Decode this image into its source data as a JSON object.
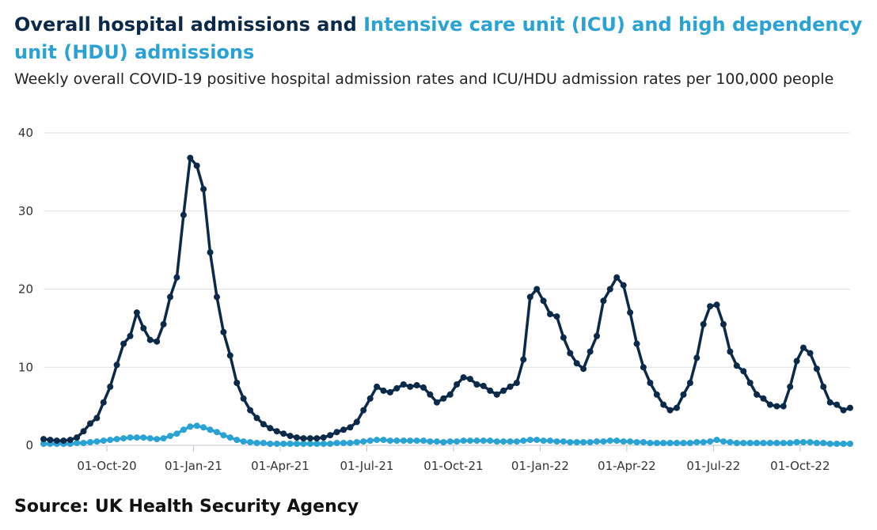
{
  "title": {
    "part1": "Overall hospital admissions",
    "connector": " and ",
    "part2": "Intensive care unit (ICU) and high dependency unit (HDU) admissions"
  },
  "subtitle": "Weekly overall COVID-19 positive hospital admission rates and ICU/HDU admission rates per 100,000 people",
  "source": "Source: UK Health Security Agency",
  "chart_data": {
    "type": "line",
    "title": "Overall hospital admissions and Intensive care unit (ICU) and high dependency unit (HDU) admissions",
    "xlabel": "",
    "ylabel": "",
    "ylim": [
      0,
      40
    ],
    "yticks": [
      0,
      10,
      20,
      30,
      40
    ],
    "grid": true,
    "xticks": [
      "01-Oct-20",
      "01-Jan-21",
      "01-Apr-21",
      "01-Jul-21",
      "01-Oct-21",
      "01-Jan-22",
      "01-Apr-22",
      "01-Jul-22",
      "01-Oct-22"
    ],
    "series": [
      {
        "name": "Overall hospital admissions",
        "color": "#0b2a4a",
        "values": [
          0.8,
          0.7,
          0.6,
          0.6,
          0.7,
          1.0,
          1.8,
          2.8,
          3.5,
          5.5,
          7.5,
          10.3,
          13.0,
          14.0,
          17.0,
          15.0,
          13.5,
          13.3,
          15.5,
          19.0,
          21.5,
          29.5,
          36.8,
          35.8,
          32.8,
          24.7,
          19.0,
          14.5,
          11.5,
          8.0,
          6.0,
          4.5,
          3.5,
          2.7,
          2.2,
          1.8,
          1.5,
          1.2,
          1.0,
          0.9,
          0.9,
          0.9,
          1.0,
          1.3,
          1.7,
          2.0,
          2.3,
          3.0,
          4.5,
          6.0,
          7.5,
          7.0,
          6.8,
          7.3,
          7.8,
          7.5,
          7.7,
          7.4,
          6.5,
          5.5,
          6.0,
          6.5,
          7.8,
          8.7,
          8.5,
          7.8,
          7.6,
          7.0,
          6.5,
          7.0,
          7.5,
          8.0,
          11.0,
          19.0,
          20.0,
          18.5,
          16.8,
          16.5,
          13.8,
          11.8,
          10.5,
          9.8,
          12.0,
          14.0,
          18.5,
          20.0,
          21.5,
          20.5,
          17.0,
          13.0,
          10.0,
          8.0,
          6.5,
          5.2,
          4.5,
          4.8,
          6.5,
          8.0,
          11.2,
          15.5,
          17.8,
          18.0,
          15.5,
          12.0,
          10.2,
          9.5,
          8.0,
          6.5,
          6.0,
          5.2,
          5.0,
          5.0,
          7.5,
          10.8,
          12.5,
          11.8,
          9.8,
          7.5,
          5.5,
          5.2,
          4.5,
          4.8
        ]
      },
      {
        "name": "Intensive care unit (ICU) and high dependency unit (HDU) admissions",
        "color": "#2aa2d4",
        "values": [
          0.2,
          0.2,
          0.2,
          0.2,
          0.2,
          0.3,
          0.3,
          0.4,
          0.5,
          0.6,
          0.7,
          0.8,
          0.9,
          1.0,
          1.0,
          1.0,
          0.9,
          0.8,
          0.9,
          1.2,
          1.5,
          2.0,
          2.4,
          2.5,
          2.3,
          2.0,
          1.7,
          1.3,
          1.0,
          0.7,
          0.5,
          0.4,
          0.3,
          0.3,
          0.2,
          0.2,
          0.2,
          0.2,
          0.2,
          0.2,
          0.2,
          0.2,
          0.2,
          0.2,
          0.3,
          0.3,
          0.3,
          0.4,
          0.5,
          0.6,
          0.7,
          0.7,
          0.6,
          0.6,
          0.6,
          0.6,
          0.6,
          0.6,
          0.5,
          0.5,
          0.4,
          0.5,
          0.5,
          0.6,
          0.6,
          0.6,
          0.6,
          0.6,
          0.5,
          0.5,
          0.5,
          0.5,
          0.6,
          0.7,
          0.7,
          0.6,
          0.6,
          0.5,
          0.5,
          0.4,
          0.4,
          0.4,
          0.4,
          0.5,
          0.5,
          0.6,
          0.6,
          0.5,
          0.5,
          0.4,
          0.4,
          0.3,
          0.3,
          0.3,
          0.3,
          0.3,
          0.3,
          0.3,
          0.4,
          0.4,
          0.5,
          0.7,
          0.5,
          0.4,
          0.3,
          0.3,
          0.3,
          0.3,
          0.3,
          0.3,
          0.3,
          0.3,
          0.3,
          0.4,
          0.4,
          0.4,
          0.3,
          0.3,
          0.2,
          0.2,
          0.2,
          0.2
        ]
      }
    ]
  }
}
